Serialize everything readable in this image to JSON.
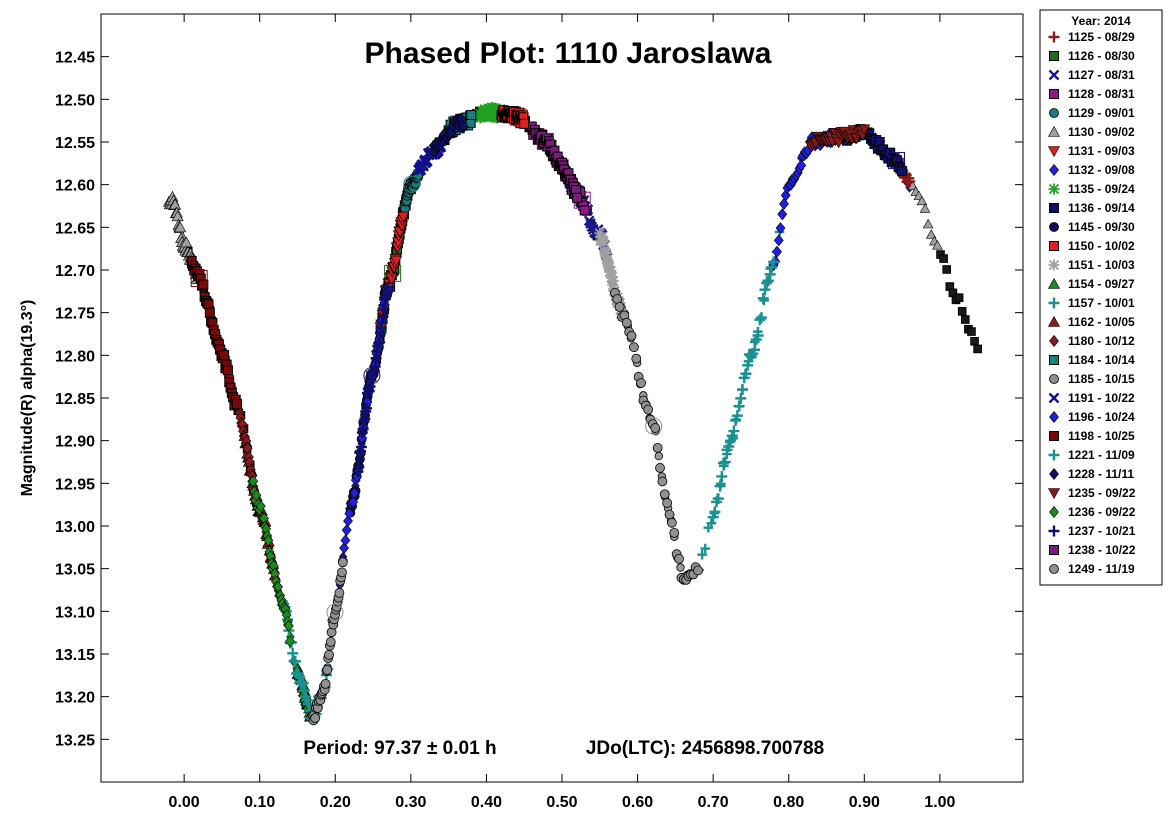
{
  "chart_data": {
    "type": "scatter",
    "title": "Phased Plot: 1110 Jaroslawa",
    "ylabel": "Magnitude(R) alpha(19.3°)",
    "xlabel": "",
    "annotation_period": "Period: 97.37 ± 0.01 h",
    "annotation_epoch": "JDo(LTC): 2456898.700788",
    "x_ticks": [
      "0.00",
      "0.10",
      "0.20",
      "0.30",
      "0.40",
      "0.50",
      "0.60",
      "0.70",
      "0.80",
      "0.90",
      "1.00"
    ],
    "y_ticks": [
      "12.45",
      "12.50",
      "12.55",
      "12.60",
      "12.65",
      "12.70",
      "12.75",
      "12.80",
      "12.85",
      "12.90",
      "12.95",
      "13.00",
      "13.05",
      "13.10",
      "13.15",
      "13.20",
      "13.25"
    ],
    "xlim": [
      -0.11,
      1.11
    ],
    "ylim": [
      13.3,
      12.4
    ],
    "y_inverted": true,
    "legend_title": "Year: 2014",
    "legend_position": "right",
    "curve_knots": [
      [
        -0.015,
        12.62
      ],
      [
        0.0,
        12.67
      ],
      [
        0.02,
        12.71
      ],
      [
        0.05,
        12.8
      ],
      [
        0.07,
        12.86
      ],
      [
        0.1,
        12.98
      ],
      [
        0.13,
        13.09
      ],
      [
        0.15,
        13.17
      ],
      [
        0.17,
        13.225
      ],
      [
        0.185,
        13.19
      ],
      [
        0.2,
        13.1
      ],
      [
        0.22,
        12.98
      ],
      [
        0.25,
        12.82
      ],
      [
        0.27,
        12.72
      ],
      [
        0.3,
        12.6
      ],
      [
        0.33,
        12.56
      ],
      [
        0.36,
        12.53
      ],
      [
        0.4,
        12.515
      ],
      [
        0.44,
        12.52
      ],
      [
        0.48,
        12.55
      ],
      [
        0.5,
        12.58
      ],
      [
        0.52,
        12.61
      ],
      [
        0.55,
        12.66
      ],
      [
        0.58,
        12.75
      ],
      [
        0.62,
        12.88
      ],
      [
        0.64,
        12.98
      ],
      [
        0.66,
        13.06
      ],
      [
        0.68,
        13.05
      ],
      [
        0.7,
        12.99
      ],
      [
        0.72,
        12.91
      ],
      [
        0.75,
        12.8
      ],
      [
        0.78,
        12.69
      ],
      [
        0.8,
        12.6
      ],
      [
        0.83,
        12.55
      ],
      [
        0.86,
        12.545
      ],
      [
        0.9,
        12.54
      ],
      [
        0.94,
        12.57
      ],
      [
        0.97,
        12.61
      ],
      [
        1.0,
        12.68
      ],
      [
        1.02,
        12.73
      ],
      [
        1.05,
        12.79
      ]
    ],
    "series": [
      {
        "name": "1125 - 08/29",
        "color": "#8b1a1a",
        "marker": "plus",
        "x_range": [
          0.92,
          0.96
        ]
      },
      {
        "name": "1126 - 08/30",
        "color": "#1e6b1e",
        "marker": "square",
        "x_range": [
          0.26,
          0.3
        ]
      },
      {
        "name": "1127 - 08/31",
        "color": "#1a1a8b",
        "marker": "x",
        "x_range": [
          0.5,
          0.56
        ]
      },
      {
        "name": "1128 - 08/31",
        "color": "#8b1a8b",
        "marker": "square",
        "x_range": [
          0.46,
          0.53
        ]
      },
      {
        "name": "1129 - 09/01",
        "color": "#1a7b7b",
        "marker": "circle",
        "x_range": [
          0.29,
          0.31
        ]
      },
      {
        "name": "1130 - 09/02",
        "color": "#a0a0a0",
        "marker": "triangle",
        "x_range": [
          -0.02,
          0.02
        ]
      },
      {
        "name": "1131 - 09/03",
        "color": "#e02020",
        "marker": "triangle-down",
        "x_range": [
          0.26,
          0.29
        ]
      },
      {
        "name": "1132 - 09/08",
        "color": "#2020e0",
        "marker": "diamond",
        "x_range": [
          0.78,
          0.86
        ]
      },
      {
        "name": "1135 - 09/24",
        "color": "#20a020",
        "marker": "asterisk",
        "x_range": [
          0.39,
          0.42
        ]
      },
      {
        "name": "1136 - 09/14",
        "color": "#10106b",
        "marker": "square",
        "x_range": [
          0.87,
          0.95
        ]
      },
      {
        "name": "1145 - 09/30",
        "color": "#10105a",
        "marker": "circle",
        "x_range": [
          0.22,
          0.26
        ]
      },
      {
        "name": "1150 - 10/02",
        "color": "#e02020",
        "marker": "square",
        "x_range": [
          0.42,
          0.45
        ]
      },
      {
        "name": "1151 - 10/03",
        "color": "#a0a0a0",
        "marker": "asterisk",
        "x_range": [
          0.55,
          0.58
        ]
      },
      {
        "name": "1154 - 09/27",
        "color": "#1e8b1e",
        "marker": "triangle",
        "x_range": [
          0.15,
          0.17
        ]
      },
      {
        "name": "1157 - 10/01",
        "color": "#1a9090",
        "marker": "plus",
        "x_range": [
          0.7,
          0.78
        ]
      },
      {
        "name": "1162 - 10/05",
        "color": "#8b1a1a",
        "marker": "triangle",
        "x_range": [
          0.08,
          0.12
        ]
      },
      {
        "name": "1180 - 10/12",
        "color": "#8b1a1a",
        "marker": "diamond",
        "x_range": [
          0.06,
          0.09
        ]
      },
      {
        "name": "1184 - 10/14",
        "color": "#1a8080",
        "marker": "square",
        "x_range": [
          0.35,
          0.38
        ]
      },
      {
        "name": "1185 - 10/15",
        "color": "#909090",
        "marker": "circle",
        "x_range": [
          0.57,
          0.68
        ]
      },
      {
        "name": "1191 - 10/22",
        "color": "#10108b",
        "marker": "x",
        "x_range": [
          0.31,
          0.34
        ]
      },
      {
        "name": "1196 - 10/24",
        "color": "#2020e0",
        "marker": "diamond",
        "x_range": [
          0.21,
          0.27
        ]
      },
      {
        "name": "1198 - 10/25",
        "color": "#7a0a0a",
        "marker": "square",
        "x_range": [
          0.01,
          0.07
        ]
      },
      {
        "name": "1221 - 11/09",
        "color": "#1a9090",
        "marker": "plus",
        "x_range": [
          0.13,
          0.19
        ]
      },
      {
        "name": "1228 - 11/11",
        "color": "#10106b",
        "marker": "diamond",
        "x_range": [
          0.33,
          0.37
        ]
      },
      {
        "name": "1235 - 09/22",
        "color": "#8b1a1a",
        "marker": "triangle-down",
        "x_range": [
          0.83,
          0.9
        ]
      },
      {
        "name": "1236 - 09/22",
        "color": "#1e8b1e",
        "marker": "diamond",
        "x_range": [
          0.09,
          0.14
        ]
      },
      {
        "name": "1237 - 10/21",
        "color": "#10106b",
        "marker": "plus",
        "x_range": [
          0.23,
          0.27
        ]
      },
      {
        "name": "1238 - 10/22",
        "color": "#7a1a7a",
        "marker": "square",
        "x_range": [
          0.47,
          0.52
        ]
      },
      {
        "name": "1249 - 11/19",
        "color": "#909090",
        "marker": "circle",
        "x_range": [
          0.17,
          0.21
        ]
      }
    ]
  }
}
